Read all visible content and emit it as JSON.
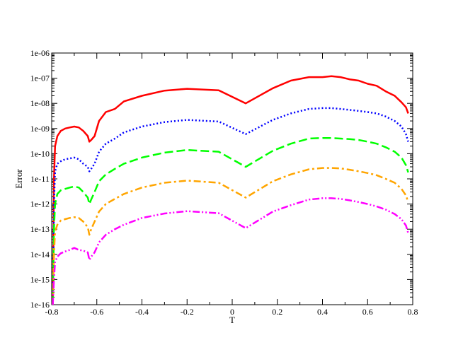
{
  "chart_data": {
    "type": "line",
    "xlabel": "T",
    "ylabel": "Error",
    "xlim": [
      -0.8,
      0.8
    ],
    "ylim": [
      1e-16,
      1e-06
    ],
    "yscale": "log",
    "grid": false,
    "legend": "none",
    "x_tick_labels": [
      "-0.8",
      "-0.6",
      "-0.4",
      "-0.2",
      "0",
      "0.2",
      "0.4",
      "0.6",
      "0.8"
    ],
    "y_tick_labels": [
      "1e-16",
      "1e-15",
      "1e-14",
      "1e-13",
      "1e-12",
      "1e-11",
      "1e-10",
      "1e-09",
      "1e-08",
      "1e-07",
      "1e-06"
    ],
    "series": [
      {
        "color": "#ff0000",
        "dash": "solid",
        "points": [
          [
            -0.795,
            1e-16
          ],
          [
            -0.79,
            1e-11
          ],
          [
            -0.785,
            2e-10
          ],
          [
            -0.775,
            5e-10
          ],
          [
            -0.76,
            8e-10
          ],
          [
            -0.74,
            1e-09
          ],
          [
            -0.72,
            1.1e-09
          ],
          [
            -0.7,
            1.2e-09
          ],
          [
            -0.68,
            1.1e-09
          ],
          [
            -0.66,
            8e-10
          ],
          [
            -0.64,
            5e-10
          ],
          [
            -0.633,
            3e-10
          ],
          [
            -0.625,
            3.5e-10
          ],
          [
            -0.61,
            5e-10
          ],
          [
            -0.59,
            2e-09
          ],
          [
            -0.56,
            4.5e-09
          ],
          [
            -0.52,
            6e-09
          ],
          [
            -0.48,
            1.2e-08
          ],
          [
            -0.4,
            2e-08
          ],
          [
            -0.3,
            3.2e-08
          ],
          [
            -0.2,
            3.8e-08
          ],
          [
            -0.06,
            3.3e-08
          ],
          [
            0.06,
            1e-08
          ],
          [
            0.18,
            4e-08
          ],
          [
            0.26,
            8e-08
          ],
          [
            0.34,
            1.1e-07
          ],
          [
            0.4,
            1.1e-07
          ],
          [
            0.44,
            1.2e-07
          ],
          [
            0.48,
            1.1e-07
          ],
          [
            0.52,
            9e-08
          ],
          [
            0.56,
            8e-08
          ],
          [
            0.6,
            6e-08
          ],
          [
            0.64,
            5e-08
          ],
          [
            0.68,
            3e-08
          ],
          [
            0.72,
            2e-08
          ],
          [
            0.75,
            1.1e-08
          ],
          [
            0.77,
            7e-09
          ],
          [
            0.78,
            4e-09
          ]
        ]
      },
      {
        "color": "#0000ff",
        "dash": "dotted",
        "points": [
          [
            -0.795,
            1e-16
          ],
          [
            -0.79,
            1e-12
          ],
          [
            -0.785,
            2e-11
          ],
          [
            -0.775,
            4e-11
          ],
          [
            -0.76,
            5e-11
          ],
          [
            -0.74,
            6e-11
          ],
          [
            -0.72,
            6.5e-11
          ],
          [
            -0.7,
            7e-11
          ],
          [
            -0.68,
            6e-11
          ],
          [
            -0.66,
            4e-11
          ],
          [
            -0.64,
            3e-11
          ],
          [
            -0.633,
            2e-11
          ],
          [
            -0.625,
            2.5e-11
          ],
          [
            -0.61,
            4e-11
          ],
          [
            -0.59,
            1.2e-10
          ],
          [
            -0.56,
            2.5e-10
          ],
          [
            -0.52,
            4e-10
          ],
          [
            -0.48,
            7e-10
          ],
          [
            -0.4,
            1.2e-09
          ],
          [
            -0.3,
            1.8e-09
          ],
          [
            -0.2,
            2.2e-09
          ],
          [
            -0.06,
            1.9e-09
          ],
          [
            0.06,
            6e-10
          ],
          [
            0.18,
            2.2e-09
          ],
          [
            0.26,
            4e-09
          ],
          [
            0.34,
            6e-09
          ],
          [
            0.4,
            6.5e-09
          ],
          [
            0.44,
            6.5e-09
          ],
          [
            0.48,
            6e-09
          ],
          [
            0.52,
            5.5e-09
          ],
          [
            0.56,
            5e-09
          ],
          [
            0.6,
            4.5e-09
          ],
          [
            0.64,
            4e-09
          ],
          [
            0.68,
            3e-09
          ],
          [
            0.72,
            2e-09
          ],
          [
            0.75,
            1.2e-09
          ],
          [
            0.77,
            6e-10
          ],
          [
            0.78,
            3e-10
          ]
        ]
      },
      {
        "color": "#00ff00",
        "dash": "dashed",
        "points": [
          [
            -0.795,
            1e-16
          ],
          [
            -0.79,
            1e-13
          ],
          [
            -0.785,
            1e-12
          ],
          [
            -0.775,
            2.5e-12
          ],
          [
            -0.76,
            3.5e-12
          ],
          [
            -0.74,
            4e-12
          ],
          [
            -0.72,
            4.5e-12
          ],
          [
            -0.7,
            5e-12
          ],
          [
            -0.68,
            4.5e-12
          ],
          [
            -0.66,
            3e-12
          ],
          [
            -0.64,
            1.8e-12
          ],
          [
            -0.633,
            1e-12
          ],
          [
            -0.625,
            1.5e-12
          ],
          [
            -0.61,
            3e-12
          ],
          [
            -0.59,
            8e-12
          ],
          [
            -0.56,
            1.5e-11
          ],
          [
            -0.52,
            2.5e-11
          ],
          [
            -0.48,
            4e-11
          ],
          [
            -0.4,
            7e-11
          ],
          [
            -0.3,
            1.1e-10
          ],
          [
            -0.2,
            1.4e-10
          ],
          [
            -0.06,
            1.2e-10
          ],
          [
            0.06,
            3e-11
          ],
          [
            0.18,
            1.3e-10
          ],
          [
            0.26,
            2.5e-10
          ],
          [
            0.34,
            4e-10
          ],
          [
            0.4,
            4.2e-10
          ],
          [
            0.44,
            4.2e-10
          ],
          [
            0.48,
            4e-10
          ],
          [
            0.52,
            3.8e-10
          ],
          [
            0.56,
            3.5e-10
          ],
          [
            0.6,
            3e-10
          ],
          [
            0.64,
            2.5e-10
          ],
          [
            0.68,
            1.8e-10
          ],
          [
            0.72,
            1.2e-10
          ],
          [
            0.75,
            7e-11
          ],
          [
            0.77,
            3.5e-11
          ],
          [
            0.78,
            1.8e-11
          ]
        ]
      },
      {
        "color": "#ffa500",
        "dash": "dashdot",
        "points": [
          [
            -0.795,
            1e-16
          ],
          [
            -0.79,
            1e-14
          ],
          [
            -0.785,
            8e-14
          ],
          [
            -0.775,
            1.5e-13
          ],
          [
            -0.76,
            2.2e-13
          ],
          [
            -0.74,
            2.5e-13
          ],
          [
            -0.72,
            2.8e-13
          ],
          [
            -0.7,
            3e-13
          ],
          [
            -0.68,
            2.8e-13
          ],
          [
            -0.66,
            2e-13
          ],
          [
            -0.64,
            1.2e-13
          ],
          [
            -0.633,
            6e-14
          ],
          [
            -0.625,
            1e-13
          ],
          [
            -0.61,
            2e-13
          ],
          [
            -0.59,
            5e-13
          ],
          [
            -0.56,
            1e-12
          ],
          [
            -0.52,
            1.6e-12
          ],
          [
            -0.48,
            2.5e-12
          ],
          [
            -0.4,
            4.5e-12
          ],
          [
            -0.3,
            7e-12
          ],
          [
            -0.2,
            8.5e-12
          ],
          [
            -0.06,
            7e-12
          ],
          [
            0.06,
            1.8e-12
          ],
          [
            0.18,
            8e-12
          ],
          [
            0.26,
            1.5e-11
          ],
          [
            0.34,
            2.4e-11
          ],
          [
            0.4,
            2.7e-11
          ],
          [
            0.44,
            2.7e-11
          ],
          [
            0.48,
            2.6e-11
          ],
          [
            0.52,
            2.3e-11
          ],
          [
            0.56,
            2e-11
          ],
          [
            0.6,
            1.7e-11
          ],
          [
            0.64,
            1.4e-11
          ],
          [
            0.68,
            1e-11
          ],
          [
            0.72,
            7e-12
          ],
          [
            0.75,
            4e-12
          ],
          [
            0.77,
            2.2e-12
          ],
          [
            0.78,
            1.2e-12
          ]
        ]
      },
      {
        "color": "#ff00ff",
        "dash": "dashdotdot",
        "points": [
          [
            -0.795,
            1e-16
          ],
          [
            -0.79,
            1e-15
          ],
          [
            -0.785,
            5e-15
          ],
          [
            -0.775,
            8e-15
          ],
          [
            -0.76,
            1.1e-14
          ],
          [
            -0.74,
            1.3e-14
          ],
          [
            -0.72,
            1.5e-14
          ],
          [
            -0.7,
            1.8e-14
          ],
          [
            -0.68,
            1.5e-14
          ],
          [
            -0.66,
            1.4e-14
          ],
          [
            -0.64,
            1.2e-14
          ],
          [
            -0.633,
            6e-15
          ],
          [
            -0.625,
            8e-15
          ],
          [
            -0.61,
            1.2e-14
          ],
          [
            -0.59,
            3e-14
          ],
          [
            -0.56,
            6e-14
          ],
          [
            -0.52,
            1e-13
          ],
          [
            -0.48,
            1.5e-13
          ],
          [
            -0.4,
            2.8e-13
          ],
          [
            -0.3,
            4.2e-13
          ],
          [
            -0.2,
            5.2e-13
          ],
          [
            -0.06,
            4.3e-13
          ],
          [
            0.06,
            1.1e-13
          ],
          [
            0.18,
            5e-13
          ],
          [
            0.26,
            9e-13
          ],
          [
            0.34,
            1.5e-12
          ],
          [
            0.4,
            1.7e-12
          ],
          [
            0.44,
            1.7e-12
          ],
          [
            0.48,
            1.6e-12
          ],
          [
            0.52,
            1.4e-12
          ],
          [
            0.56,
            1.2e-12
          ],
          [
            0.6,
            1e-12
          ],
          [
            0.64,
            8e-13
          ],
          [
            0.68,
            6e-13
          ],
          [
            0.72,
            4e-13
          ],
          [
            0.75,
            2.5e-13
          ],
          [
            0.77,
            1.4e-13
          ],
          [
            0.78,
            7e-14
          ]
        ]
      }
    ]
  }
}
